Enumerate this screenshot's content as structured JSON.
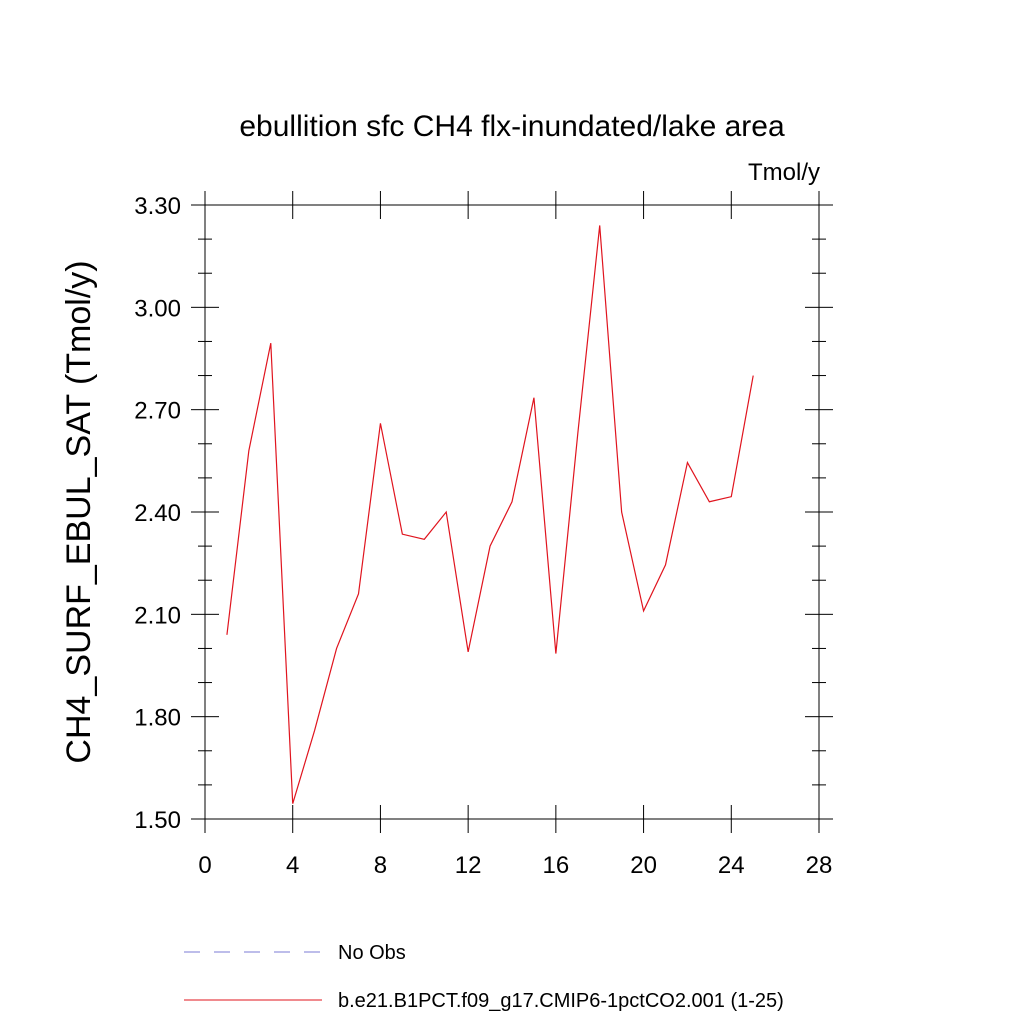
{
  "chart_data": {
    "type": "line",
    "title": "ebullition sfc CH4 flx-inundated/lake area",
    "units_label": "Tmol/y",
    "ylabel": "CH4_SURF_EBUL_SAT  (Tmol/y)",
    "xlabel": "",
    "xlim": [
      0,
      28
    ],
    "ylim": [
      1.5,
      3.3
    ],
    "x_ticks": [
      0,
      4,
      8,
      12,
      16,
      20,
      24,
      28
    ],
    "x_tick_labels": [
      "0",
      "4",
      "8",
      "12",
      "16",
      "20",
      "24",
      "28"
    ],
    "y_ticks": [
      1.5,
      1.8,
      2.1,
      2.4,
      2.7,
      3.0,
      3.3
    ],
    "y_tick_labels": [
      "1.50",
      "1.80",
      "2.10",
      "2.40",
      "2.70",
      "3.00",
      "3.30"
    ],
    "grid": false,
    "legend_position": "bottom",
    "series": [
      {
        "name": "No Obs",
        "color": "#7b7bd6",
        "style": "dashed",
        "x": [],
        "values": []
      },
      {
        "name": "b.e21.B1PCT.f09_g17.CMIP6-1pctCO2.001 (1-25)",
        "color": "#e0141e",
        "style": "solid",
        "x": [
          1,
          2,
          3,
          4,
          5,
          6,
          7,
          8,
          9,
          10,
          11,
          12,
          13,
          14,
          15,
          16,
          17,
          18,
          19,
          20,
          21,
          22,
          23,
          24,
          25
        ],
        "values": [
          2.04,
          2.58,
          2.895,
          1.545,
          1.76,
          2.0,
          2.16,
          2.66,
          2.335,
          2.32,
          2.4,
          1.99,
          2.3,
          2.43,
          2.735,
          1.985,
          2.63,
          3.24,
          2.4,
          2.11,
          2.245,
          2.545,
          2.43,
          2.445,
          2.8
        ]
      }
    ]
  }
}
